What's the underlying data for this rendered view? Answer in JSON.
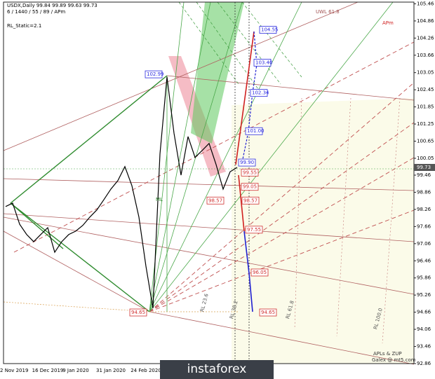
{
  "chart_data": {
    "type": "line",
    "title": "USDX,Daily 99.84 99.89 99.63 99.73",
    "subtitle": "6 / 1440 / 55 / 89 / APm",
    "watermark": "instaforex",
    "categories": [
      null,
      "12 Nov 2019",
      null,
      null,
      null,
      null,
      "16 Dec 2019",
      null,
      null,
      null,
      "9 Jan 2020",
      null,
      null,
      null,
      null,
      "31 Jan 2020",
      null,
      null,
      null,
      null,
      "24 Feb 2020",
      null,
      null,
      null,
      null,
      null,
      null,
      null,
      null,
      null,
      null,
      null,
      null,
      null,
      null,
      null,
      null,
      null,
      null,
      null,
      null,
      null,
      null,
      null,
      null,
      null,
      null,
      null,
      null,
      null,
      null,
      null,
      null,
      null,
      null,
      null,
      null,
      null,
      null
    ],
    "series": [
      {
        "name": "USDX",
        "color": "#000000",
        "values": [
          98.36,
          98.48,
          97.74,
          97.38,
          97.13,
          97.38,
          97.62,
          96.76,
          97.13,
          97.38,
          97.5,
          97.7,
          97.99,
          98.24,
          98.6,
          98.97,
          99.27,
          99.76,
          99.09,
          97.99,
          96.27,
          94.8,
          100.2,
          102.9,
          100.93,
          99.46,
          100.81,
          100.08,
          100.32,
          100.57,
          99.83,
          98.97,
          99.58,
          99.73,
          null,
          null,
          null,
          null,
          null,
          null,
          null,
          null,
          null,
          null,
          null,
          null,
          null,
          null,
          null,
          null,
          null,
          null,
          null,
          null,
          null,
          null,
          null,
          null,
          null
        ]
      }
    ],
    "last_price": 99.73,
    "ylim": [
      92.86,
      105.52
    ],
    "yticks": [
      92.86,
      93.46,
      94.06,
      94.66,
      95.26,
      95.86,
      96.46,
      97.06,
      97.66,
      98.26,
      98.86,
      99.46,
      100.05,
      100.65,
      101.25,
      101.85,
      102.45,
      103.05,
      103.66,
      104.26,
      104.86,
      105.46
    ],
    "grid": false,
    "price_labels": [
      {
        "value": 104.55,
        "color": "#2a2adf"
      },
      {
        "value": 103.4,
        "label": "103.40",
        "color": "#2a2adf"
      },
      {
        "value": 102.34,
        "color": "#2a2adf"
      },
      {
        "value": 101,
        "label": "101.00",
        "color": "#2a2adf"
      },
      {
        "value": 99.9,
        "label": "99.90",
        "color": "#2a2adf"
      },
      {
        "value": 99.55,
        "color": "#d03030"
      },
      {
        "value": 99.05,
        "color": "#d03030"
      },
      {
        "value": 98.57,
        "color": "#d03030"
      },
      {
        "value": 98.57,
        "color": "#d03030"
      },
      {
        "value": 97.55,
        "color": "#d03030"
      },
      {
        "value": 96.05,
        "color": "#d03030"
      },
      {
        "value": 94.65,
        "color": "#d03030"
      },
      {
        "value": 94.65,
        "color": "#d03030"
      },
      {
        "value": 102.99,
        "color": "#2a2adf"
      }
    ],
    "annotations": [
      "RL_Static=2.1",
      "APm",
      "UWL 61.8",
      "ML",
      "RL 23.6",
      "RL 38.2",
      "RL 61.8",
      "RL 100.0",
      "APLs & ZUP",
      "Galex @ mt5.com"
    ]
  }
}
